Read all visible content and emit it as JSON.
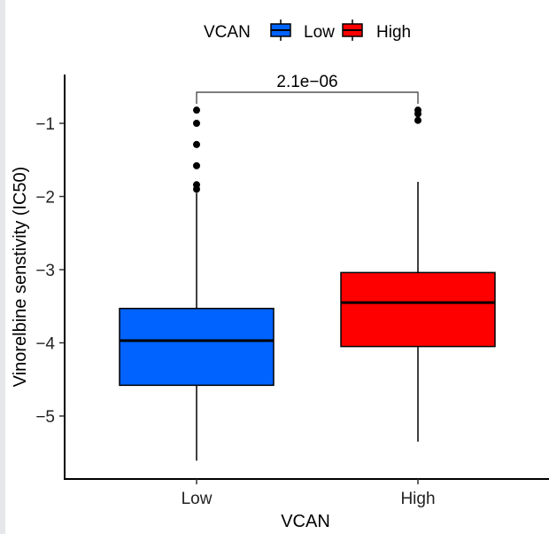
{
  "chart_data": {
    "type": "box",
    "title": "",
    "xlabel": "VCAN",
    "ylabel": "Vinorelbine senstivity (IC50)",
    "ylim": [
      -5.85,
      -0.45
    ],
    "yticks": [
      -1,
      -2,
      -3,
      -4,
      -5
    ],
    "ytick_labels": [
      "−1",
      "−2",
      "−3",
      "−4",
      "−5"
    ],
    "categories": [
      "Low",
      "High"
    ],
    "legend": {
      "title": "VCAN",
      "position": "top",
      "entries": [
        {
          "label": "Low",
          "color": "#0063FF"
        },
        {
          "label": "High",
          "color": "#FF0000"
        }
      ]
    },
    "series": [
      {
        "name": "Low",
        "color": "#0063FF",
        "whisker_low": -5.61,
        "q1": -4.58,
        "median": -3.97,
        "q3": -3.53,
        "whisker_high": -1.95,
        "outliers": [
          -0.82,
          -1.0,
          -1.29,
          -1.58,
          -1.84,
          -1.9
        ]
      },
      {
        "name": "High",
        "color": "#FF0000",
        "whisker_low": -5.35,
        "q1": -4.05,
        "median": -3.45,
        "q3": -3.04,
        "whisker_high": -1.8,
        "outliers": [
          -0.82,
          -0.87,
          -0.96
        ]
      }
    ],
    "annotations": [
      {
        "type": "significance-bracket",
        "from": "Low",
        "to": "High",
        "label": "2.1e−06"
      }
    ],
    "grid": false
  }
}
